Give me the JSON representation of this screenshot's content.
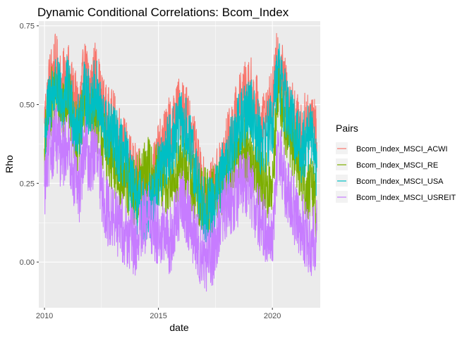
{
  "colors": {
    "panel_bg": "#ebebeb",
    "grid_major": "#ffffff",
    "tick": "#333333"
  },
  "chart_data": {
    "type": "line",
    "title": "Dynamic Conditional Correlations: Bcom_Index",
    "xlabel": "date",
    "ylabel": "Rho",
    "xlim": [
      2009.75,
      2022.1
    ],
    "ylim": [
      -0.145,
      0.765
    ],
    "x_ticks": [
      2010,
      2015,
      2020
    ],
    "x_tick_labels": [
      "2010",
      "2015",
      "2020"
    ],
    "y_ticks": [
      0.0,
      0.25,
      0.5,
      0.75
    ],
    "y_tick_labels": [
      "0.00",
      "0.25",
      "0.50",
      "0.75"
    ],
    "grid": true,
    "legend": {
      "title": "Pairs",
      "position": "right"
    },
    "series": [
      {
        "name": "Bcom_Index_MSCI_ACWI",
        "color": "#F8766D",
        "x": [
          2010.0,
          2010.25,
          2010.5,
          2010.75,
          2011.0,
          2011.25,
          2011.5,
          2011.75,
          2012.0,
          2012.25,
          2012.5,
          2012.75,
          2013.0,
          2013.25,
          2013.5,
          2013.75,
          2014.0,
          2014.25,
          2014.5,
          2014.75,
          2015.0,
          2015.25,
          2015.5,
          2015.75,
          2016.0,
          2016.25,
          2016.5,
          2016.75,
          2017.0,
          2017.25,
          2017.5,
          2017.75,
          2018.0,
          2018.25,
          2018.5,
          2018.75,
          2019.0,
          2019.25,
          2019.5,
          2019.75,
          2020.0,
          2020.25,
          2020.5,
          2020.75,
          2021.0,
          2021.25,
          2021.5,
          2021.75,
          2021.95
        ],
        "values": [
          0.44,
          0.58,
          0.62,
          0.55,
          0.6,
          0.52,
          0.47,
          0.6,
          0.55,
          0.6,
          0.5,
          0.45,
          0.44,
          0.4,
          0.36,
          0.3,
          0.27,
          0.24,
          0.22,
          0.26,
          0.33,
          0.38,
          0.42,
          0.45,
          0.5,
          0.46,
          0.38,
          0.28,
          0.22,
          0.2,
          0.24,
          0.3,
          0.36,
          0.42,
          0.48,
          0.52,
          0.56,
          0.5,
          0.44,
          0.46,
          0.5,
          0.66,
          0.56,
          0.5,
          0.45,
          0.4,
          0.44,
          0.48,
          0.38
        ]
      },
      {
        "name": "Bcom_Index_MSCI_RE",
        "color": "#7CAE00",
        "x": [
          2010.0,
          2010.25,
          2010.5,
          2010.75,
          2011.0,
          2011.25,
          2011.5,
          2011.75,
          2012.0,
          2012.25,
          2012.5,
          2012.75,
          2013.0,
          2013.25,
          2013.5,
          2013.75,
          2014.0,
          2014.25,
          2014.5,
          2014.75,
          2015.0,
          2015.25,
          2015.5,
          2015.75,
          2016.0,
          2016.25,
          2016.5,
          2016.75,
          2017.0,
          2017.25,
          2017.5,
          2017.75,
          2018.0,
          2018.25,
          2018.5,
          2018.75,
          2019.0,
          2019.25,
          2019.5,
          2019.75,
          2020.0,
          2020.25,
          2020.5,
          2020.75,
          2021.0,
          2021.25,
          2021.5,
          2021.75,
          2021.95
        ],
        "values": [
          0.36,
          0.5,
          0.54,
          0.48,
          0.53,
          0.44,
          0.38,
          0.5,
          0.45,
          0.48,
          0.4,
          0.35,
          0.3,
          0.28,
          0.26,
          0.24,
          0.22,
          0.26,
          0.3,
          0.28,
          0.26,
          0.25,
          0.24,
          0.28,
          0.3,
          0.28,
          0.25,
          0.22,
          0.2,
          0.19,
          0.2,
          0.24,
          0.26,
          0.3,
          0.34,
          0.36,
          0.34,
          0.3,
          0.26,
          0.24,
          0.22,
          0.58,
          0.46,
          0.4,
          0.36,
          0.3,
          0.24,
          0.22,
          0.17
        ]
      },
      {
        "name": "Bcom_Index_MSCI_USA",
        "color": "#00BFC4",
        "x": [
          2010.0,
          2010.25,
          2010.5,
          2010.75,
          2011.0,
          2011.25,
          2011.5,
          2011.75,
          2012.0,
          2012.25,
          2012.5,
          2012.75,
          2013.0,
          2013.25,
          2013.5,
          2013.75,
          2014.0,
          2014.25,
          2014.5,
          2014.75,
          2015.0,
          2015.25,
          2015.5,
          2015.75,
          2016.0,
          2016.25,
          2016.5,
          2016.75,
          2017.0,
          2017.25,
          2017.5,
          2017.75,
          2018.0,
          2018.25,
          2018.5,
          2018.75,
          2019.0,
          2019.25,
          2019.5,
          2019.75,
          2020.0,
          2020.25,
          2020.5,
          2020.75,
          2021.0,
          2021.25,
          2021.5,
          2021.75,
          2021.95
        ],
        "values": [
          0.4,
          0.52,
          0.56,
          0.5,
          0.55,
          0.47,
          0.42,
          0.53,
          0.5,
          0.55,
          0.45,
          0.41,
          0.4,
          0.36,
          0.33,
          0.26,
          0.2,
          0.18,
          0.16,
          0.2,
          0.28,
          0.33,
          0.37,
          0.4,
          0.44,
          0.41,
          0.33,
          0.24,
          0.18,
          0.16,
          0.2,
          0.26,
          0.31,
          0.37,
          0.42,
          0.46,
          0.5,
          0.44,
          0.38,
          0.4,
          0.44,
          0.62,
          0.52,
          0.46,
          0.42,
          0.36,
          0.38,
          0.42,
          0.3
        ]
      },
      {
        "name": "Bcom_Index_MSCI_USREIT",
        "color": "#C77CFF",
        "x": [
          2010.0,
          2010.25,
          2010.5,
          2010.75,
          2011.0,
          2011.25,
          2011.5,
          2011.75,
          2012.0,
          2012.25,
          2012.5,
          2012.75,
          2013.0,
          2013.25,
          2013.5,
          2013.75,
          2014.0,
          2014.25,
          2014.5,
          2014.75,
          2015.0,
          2015.25,
          2015.5,
          2015.75,
          2016.0,
          2016.25,
          2016.5,
          2016.75,
          2017.0,
          2017.25,
          2017.5,
          2017.75,
          2018.0,
          2018.25,
          2018.5,
          2018.75,
          2019.0,
          2019.25,
          2019.5,
          2019.75,
          2020.0,
          2020.25,
          2020.5,
          2020.75,
          2021.0,
          2021.25,
          2021.5,
          2021.75,
          2021.95
        ],
        "values": [
          0.24,
          0.36,
          0.4,
          0.33,
          0.38,
          0.3,
          0.22,
          0.36,
          0.32,
          0.35,
          0.24,
          0.16,
          0.14,
          0.12,
          0.1,
          0.08,
          0.06,
          0.1,
          0.14,
          0.12,
          0.1,
          0.08,
          0.06,
          0.12,
          0.2,
          0.16,
          0.1,
          0.04,
          0.02,
          0.0,
          0.06,
          0.14,
          0.18,
          0.2,
          0.22,
          0.26,
          0.24,
          0.18,
          0.12,
          0.1,
          0.06,
          0.38,
          0.26,
          0.2,
          0.16,
          0.12,
          0.08,
          0.06,
          0.1
        ]
      }
    ]
  }
}
